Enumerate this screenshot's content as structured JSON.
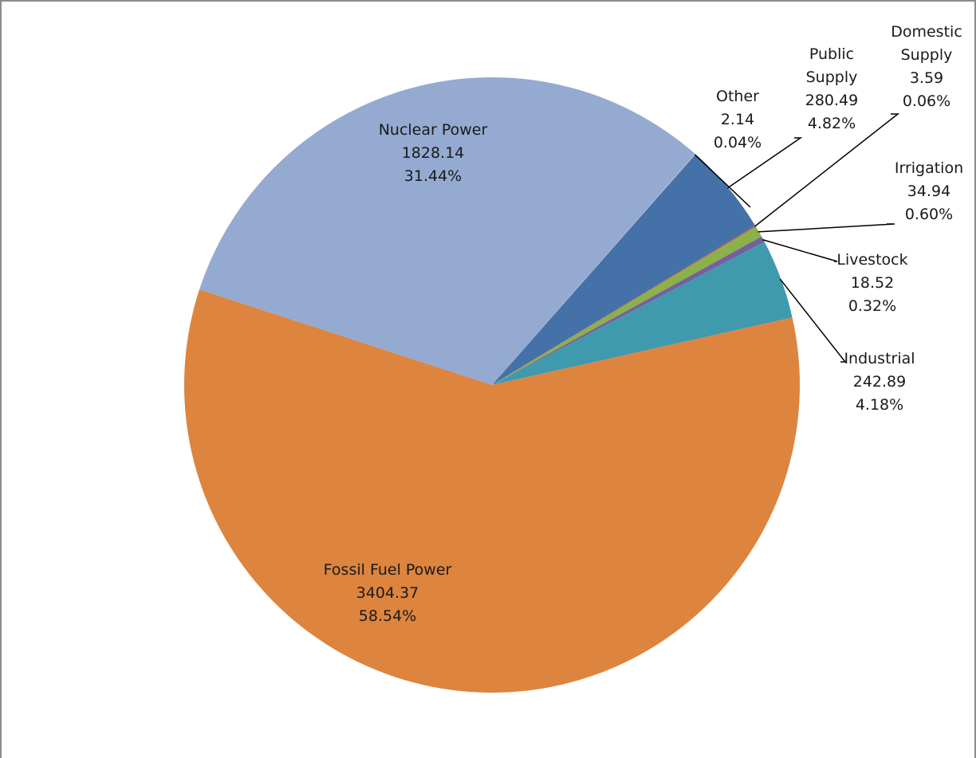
{
  "chart_data": {
    "type": "pie",
    "title": "",
    "start_angle_deg": 41.4,
    "direction": "clockwise",
    "legend": "none",
    "slices": [
      {
        "label": "Public Supply",
        "value": 280.49,
        "percent": "4.82%",
        "value_label": "280.49",
        "label_lines": [
          "Public",
          "Supply"
        ],
        "color": "#4472A8"
      },
      {
        "label": "Domestic Supply",
        "value": 3.59,
        "percent": "0.06%",
        "value_label": "3.59",
        "label_lines": [
          "Domestic",
          "Supply"
        ],
        "color": "#B05050"
      },
      {
        "label": "Irrigation",
        "value": 34.94,
        "percent": "0.60%",
        "value_label": "34.94",
        "label_lines": [
          "Irrigation"
        ],
        "color": "#8CB04A"
      },
      {
        "label": "Livestock",
        "value": 18.52,
        "percent": "0.32%",
        "value_label": "18.52",
        "label_lines": [
          "Livestock"
        ],
        "color": "#7460A0"
      },
      {
        "label": "Industrial",
        "value": 242.89,
        "percent": "4.18%",
        "value_label": "242.89",
        "label_lines": [
          "Industrial"
        ],
        "color": "#3F9AAE"
      },
      {
        "label": "Fossil Fuel Power",
        "value": 3404.37,
        "percent": "58.54%",
        "value_label": "3404.37",
        "label_lines": [
          "Fossil Fuel Power"
        ],
        "color": "#DD843E"
      },
      {
        "label": "Nuclear Power",
        "value": 1828.14,
        "percent": "31.44%",
        "value_label": "1828.14",
        "label_lines": [
          "Nuclear Power"
        ],
        "color": "#95AAD1"
      },
      {
        "label": "Other",
        "value": 2.14,
        "percent": "0.04%",
        "value_label": "2.14",
        "label_lines": [
          "Other"
        ],
        "color": "#BDB0CD"
      }
    ]
  }
}
